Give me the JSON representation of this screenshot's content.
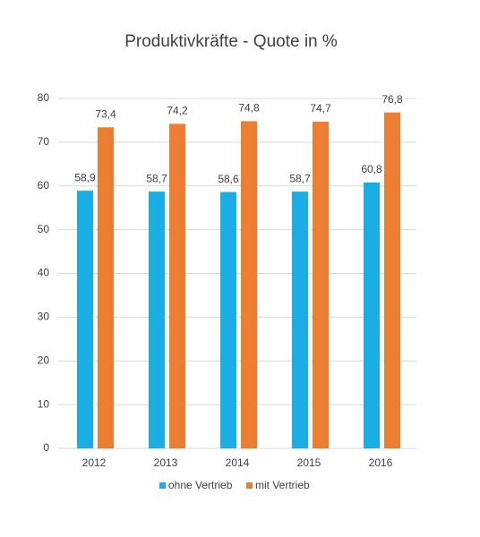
{
  "chart_data": {
    "type": "bar",
    "title": "Produktivkräfte - Quote in %",
    "categories": [
      "2012",
      "2013",
      "2014",
      "2015",
      "2016"
    ],
    "series": [
      {
        "name": "ohne Vertrieb",
        "color": "#1aaee4",
        "values": [
          58.9,
          58.7,
          58.6,
          58.7,
          60.8
        ],
        "value_labels": [
          "58,9",
          "58,7",
          "58,6",
          "58,7",
          "60,8"
        ]
      },
      {
        "name": "mit Vertrieb",
        "color": "#ed7d31",
        "values": [
          73.4,
          74.2,
          74.8,
          74.7,
          76.8
        ],
        "value_labels": [
          "73,4",
          "74,2",
          "74,8",
          "74,7",
          "76,8"
        ]
      }
    ],
    "ylim": [
      0,
      80
    ],
    "yticks": [
      0,
      10,
      20,
      30,
      40,
      50,
      60,
      70,
      80
    ],
    "grid": true,
    "legend": "bottom"
  }
}
